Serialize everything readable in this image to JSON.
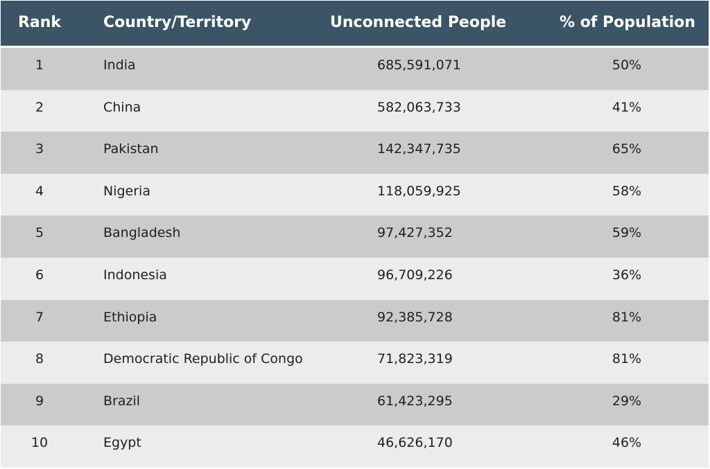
{
  "chart_data": {
    "type": "table",
    "columns": [
      "Rank",
      "Country/Territory",
      "Unconnected People",
      "% of Population"
    ],
    "rows": [
      {
        "rank": "1",
        "country": "India",
        "people": "685,591,071",
        "pct": "50%"
      },
      {
        "rank": "2",
        "country": "China",
        "people": "582,063,733",
        "pct": "41%"
      },
      {
        "rank": "3",
        "country": "Pakistan",
        "people": "142,347,735",
        "pct": "65%"
      },
      {
        "rank": "4",
        "country": "Nigeria",
        "people": "118,059,925",
        "pct": "58%"
      },
      {
        "rank": "5",
        "country": "Bangladesh",
        "people": "97,427,352",
        "pct": "59%"
      },
      {
        "rank": "6",
        "country": "Indonesia",
        "people": "96,709,226",
        "pct": "36%"
      },
      {
        "rank": "7",
        "country": "Ethiopia",
        "people": "92,385,728",
        "pct": "81%"
      },
      {
        "rank": "8",
        "country": "Democratic Republic of Congo",
        "people": "71,823,319",
        "pct": "81%"
      },
      {
        "rank": "9",
        "country": "Brazil",
        "people": "61,423,295",
        "pct": "29%"
      },
      {
        "rank": "10",
        "country": "Egypt",
        "people": "46,626,170",
        "pct": "46%"
      }
    ]
  },
  "colors": {
    "header_bg": "#3b5466",
    "header_text": "#ffffff",
    "row_dark": "#cbcbcb",
    "row_light": "#ececec",
    "text": "#1f1f1f"
  }
}
